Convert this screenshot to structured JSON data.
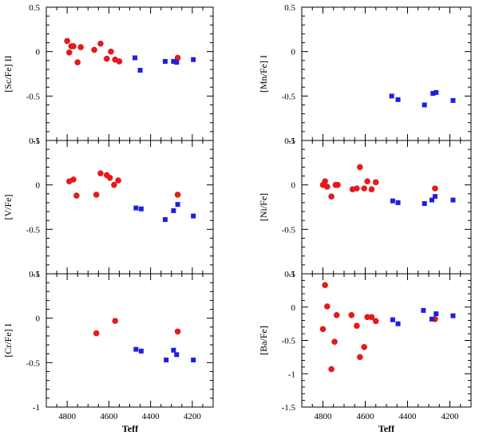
{
  "colors": {
    "red": "#e41a1c",
    "blue": "#1f1fe0",
    "frame": "#000000"
  },
  "xlabel": "Teff",
  "chart_data": [
    {
      "type": "scatter",
      "ylabel": "[Sc/Fe] II",
      "xlim": [
        4900,
        4100
      ],
      "ylim": [
        -1,
        0.5
      ],
      "xticks": [
        4800,
        4600,
        4400,
        4200
      ],
      "yticks": [
        0.5,
        0,
        -0.5,
        -1
      ],
      "series": [
        {
          "marker": "circle",
          "color": "red",
          "x": [
            4800,
            4790,
            4780,
            4770,
            4750,
            4735,
            4670,
            4640,
            4610,
            4590,
            4570,
            4550,
            4270
          ],
          "y": [
            0.12,
            -0.01,
            0.06,
            0.06,
            -0.12,
            0.05,
            0.02,
            0.09,
            -0.08,
            0.0,
            -0.09,
            -0.11,
            -0.07
          ]
        },
        {
          "marker": "square",
          "color": "blue",
          "x": [
            4475,
            4450,
            4330,
            4290,
            4275,
            4195
          ],
          "y": [
            -0.07,
            -0.21,
            -0.11,
            -0.11,
            -0.12,
            -0.09
          ]
        }
      ]
    },
    {
      "type": "scatter",
      "ylabel": "[Mn/Fe] I",
      "xlim": [
        4900,
        4100
      ],
      "ylim": [
        -1,
        0.5
      ],
      "xticks": [
        4800,
        4600,
        4400,
        4200
      ],
      "yticks": [
        0.5,
        0,
        -0.5,
        -1
      ],
      "series": [
        {
          "marker": "square",
          "color": "blue",
          "x": [
            4475,
            4445,
            4320,
            4280,
            4265,
            4185
          ],
          "y": [
            -0.5,
            -0.54,
            -0.6,
            -0.47,
            -0.46,
            -0.55
          ]
        }
      ]
    },
    {
      "type": "scatter",
      "ylabel": "[V/Fe]",
      "xlim": [
        4900,
        4100
      ],
      "ylim": [
        -1,
        0.5
      ],
      "xticks": [
        4800,
        4600,
        4400,
        4200
      ],
      "yticks": [
        0.5,
        0,
        -0.5,
        -1
      ],
      "series": [
        {
          "marker": "circle",
          "color": "red",
          "x": [
            4790,
            4770,
            4755,
            4660,
            4640,
            4610,
            4595,
            4575,
            4555,
            4270
          ],
          "y": [
            0.04,
            0.06,
            -0.12,
            -0.11,
            0.13,
            0.11,
            0.08,
            0.0,
            0.05,
            -0.11
          ]
        },
        {
          "marker": "square",
          "color": "blue",
          "x": [
            4470,
            4445,
            4330,
            4290,
            4270,
            4195
          ],
          "y": [
            -0.26,
            -0.27,
            -0.39,
            -0.29,
            -0.22,
            -0.35
          ]
        }
      ]
    },
    {
      "type": "scatter",
      "ylabel": "[Ni/Fe]",
      "xlim": [
        4900,
        4100
      ],
      "ylim": [
        -1,
        0.5
      ],
      "xticks": [
        4800,
        4600,
        4400,
        4200
      ],
      "yticks": [
        0.5,
        0,
        -0.5,
        -1
      ],
      "series": [
        {
          "marker": "circle",
          "color": "red",
          "x": [
            4800,
            4790,
            4780,
            4760,
            4740,
            4730,
            4660,
            4640,
            4625,
            4605,
            4590,
            4570,
            4550,
            4270
          ],
          "y": [
            0.0,
            0.04,
            -0.02,
            -0.13,
            0.0,
            0.0,
            -0.05,
            -0.04,
            0.2,
            -0.04,
            0.04,
            -0.05,
            0.03,
            -0.04
          ]
        },
        {
          "marker": "square",
          "color": "blue",
          "x": [
            4470,
            4445,
            4320,
            4285,
            4270,
            4185
          ],
          "y": [
            -0.18,
            -0.2,
            -0.21,
            -0.17,
            -0.13,
            -0.17
          ]
        }
      ]
    },
    {
      "type": "scatter",
      "ylabel": "[Cr/Fe] I",
      "xlim": [
        4900,
        4100
      ],
      "ylim": [
        -1,
        0.5
      ],
      "xticks": [
        4800,
        4600,
        4400,
        4200
      ],
      "yticks": [
        0.5,
        0,
        -0.5,
        -1
      ],
      "series": [
        {
          "marker": "circle",
          "color": "red",
          "x": [
            4660,
            4570,
            4270
          ],
          "y": [
            -0.17,
            -0.03,
            -0.15
          ]
        },
        {
          "marker": "square",
          "color": "blue",
          "x": [
            4470,
            4445,
            4325,
            4290,
            4275,
            4195
          ],
          "y": [
            -0.35,
            -0.37,
            -0.47,
            -0.36,
            -0.41,
            -0.47
          ]
        }
      ]
    },
    {
      "type": "scatter",
      "ylabel": "[Ba/Fe]",
      "xlim": [
        4900,
        4100
      ],
      "ylim": [
        -1.5,
        0.5
      ],
      "xticks": [
        4800,
        4600,
        4400,
        4200
      ],
      "yticks": [
        0.5,
        0,
        -0.5,
        -1,
        -1.5
      ],
      "series": [
        {
          "marker": "circle",
          "color": "red",
          "x": [
            4800,
            4790,
            4780,
            4760,
            4745,
            4735,
            4665,
            4640,
            4625,
            4605,
            4590,
            4570,
            4550,
            4270
          ],
          "y": [
            -0.33,
            0.33,
            0.01,
            -0.93,
            -0.52,
            -0.12,
            -0.12,
            -0.28,
            -0.75,
            -0.6,
            -0.15,
            -0.15,
            -0.21,
            -0.18
          ]
        },
        {
          "marker": "square",
          "color": "blue",
          "x": [
            4470,
            4445,
            4325,
            4285,
            4265,
            4185
          ],
          "y": [
            -0.19,
            -0.25,
            -0.05,
            -0.18,
            -0.1,
            -0.13
          ]
        }
      ]
    }
  ]
}
